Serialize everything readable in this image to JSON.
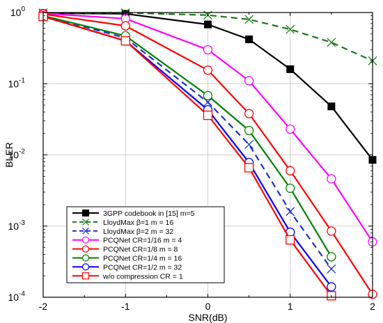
{
  "chart_data": {
    "type": "line",
    "xlabel": "SNR(dB)",
    "ylabel": "BLER",
    "xlim": [
      -2,
      2
    ],
    "ylim": [
      0.0001,
      1
    ],
    "yscale": "log",
    "x_ticks": [
      "-2",
      "-1",
      "0",
      "1",
      "2"
    ],
    "y_ticks": [
      {
        "base": "10",
        "exp": "-4"
      },
      {
        "base": "10",
        "exp": "-3"
      },
      {
        "base": "10",
        "exp": "-2"
      },
      {
        "base": "10",
        "exp": "-1"
      },
      {
        "base": "10",
        "exp": "0"
      }
    ],
    "grid": true,
    "legend_position": "bottom-left",
    "series": [
      {
        "name": "3GPP codebook in [15] m=5",
        "color": "#000000",
        "marker": "square-filled",
        "dash": "solid",
        "x": [
          -2,
          -1,
          0,
          0.5,
          1,
          1.5,
          2
        ],
        "values": [
          0.98,
          0.96,
          0.68,
          0.42,
          0.16,
          0.048,
          0.0085
        ]
      },
      {
        "name": "LloydMax  β=1         m = 16",
        "color": "#1a7a1a",
        "marker": "x",
        "dash": "dashed",
        "x": [
          -2,
          -1,
          0,
          0.5,
          1,
          1.5,
          2
        ],
        "values": [
          0.99,
          0.99,
          0.92,
          0.8,
          0.58,
          0.38,
          0.21
        ]
      },
      {
        "name": "LloydMax  β=2         m = 32",
        "color": "#1f2fd0",
        "marker": "x",
        "dash": "dashed",
        "x": [
          -2,
          -1,
          0,
          0.5,
          1,
          1.5
        ],
        "values": [
          0.9,
          0.44,
          0.055,
          0.014,
          0.0016,
          0.00025
        ]
      },
      {
        "name": "PCQNet   CR=1/16   m = 4",
        "color": "#ff00ff",
        "marker": "circle-open",
        "dash": "solid",
        "x": [
          -2,
          -1,
          0,
          0.5,
          1,
          1.5,
          2
        ],
        "values": [
          0.97,
          0.82,
          0.3,
          0.11,
          0.023,
          0.0046,
          0.0006
        ]
      },
      {
        "name": "PCQNet   CR=1/8     m = 8",
        "color": "#ff0000",
        "marker": "circle-open",
        "dash": "solid",
        "x": [
          -2,
          -1,
          0,
          0.5,
          1,
          1.5,
          2
        ],
        "values": [
          0.95,
          0.65,
          0.155,
          0.038,
          0.006,
          0.00085,
          0.00011
        ]
      },
      {
        "name": "PCQNet   CR=1/4     m = 16",
        "color": "#008000",
        "marker": "circle-open",
        "dash": "solid",
        "x": [
          -2,
          -1,
          0,
          0.5,
          1,
          1.5
        ],
        "values": [
          0.9,
          0.47,
          0.068,
          0.022,
          0.0034,
          0.00037
        ]
      },
      {
        "name": "PCQNet   CR=1/2     m = 32",
        "color": "#0000ff",
        "marker": "circle-open",
        "dash": "solid",
        "x": [
          -2,
          -1,
          0,
          0.5,
          1,
          1.5
        ],
        "values": [
          0.88,
          0.4,
          0.043,
          0.0078,
          0.00082,
          0.00014
        ]
      },
      {
        "name": "w/o compression      CR = 1",
        "color": "#ff0000",
        "marker": "square-open",
        "dash": "solid",
        "x": [
          -2,
          -1,
          0,
          0.5,
          1,
          1.5
        ],
        "values": [
          0.88,
          0.4,
          0.036,
          0.0066,
          0.00064,
          0.000105
        ]
      }
    ]
  }
}
